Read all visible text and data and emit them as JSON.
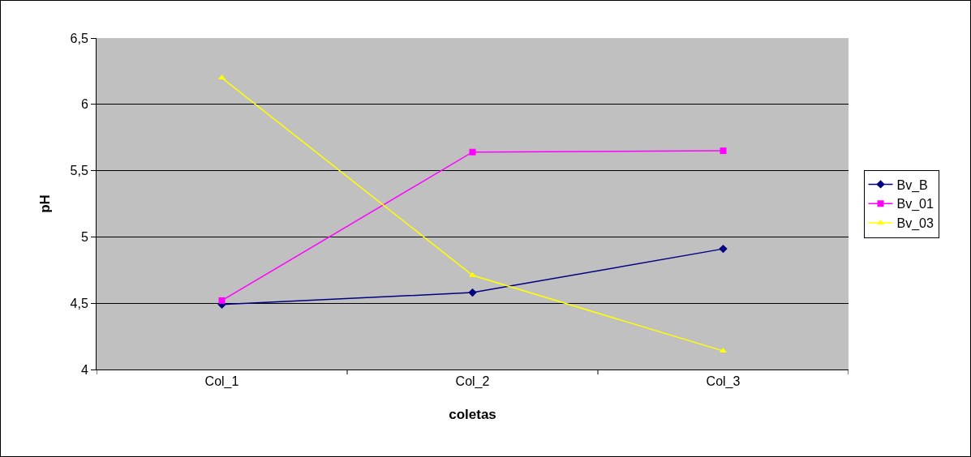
{
  "chart_data": {
    "type": "line",
    "xlabel": "coletas",
    "ylabel": "pH",
    "categories": [
      "Col_1",
      "Col_2",
      "Col_3"
    ],
    "series": [
      {
        "name": "Bv_B",
        "color": "#000080",
        "marker": "diamond",
        "values": [
          4.49,
          4.58,
          4.91
        ]
      },
      {
        "name": "Bv_01",
        "color": "#ff00ff",
        "marker": "square",
        "values": [
          4.52,
          5.64,
          5.65
        ]
      },
      {
        "name": "Bv_03",
        "color": "#ffff00",
        "marker": "triangle",
        "values": [
          6.2,
          4.71,
          4.14
        ]
      }
    ],
    "ylim": [
      4,
      6.5
    ],
    "yticks": [
      4,
      {
        "value": 4.5,
        "label": "4,5"
      },
      5,
      {
        "value": 5.5,
        "label": "5,5"
      },
      6,
      {
        "value": 6.5,
        "label": "6,5"
      }
    ],
    "grid": "y",
    "legend": "right",
    "line_style": "solid"
  }
}
